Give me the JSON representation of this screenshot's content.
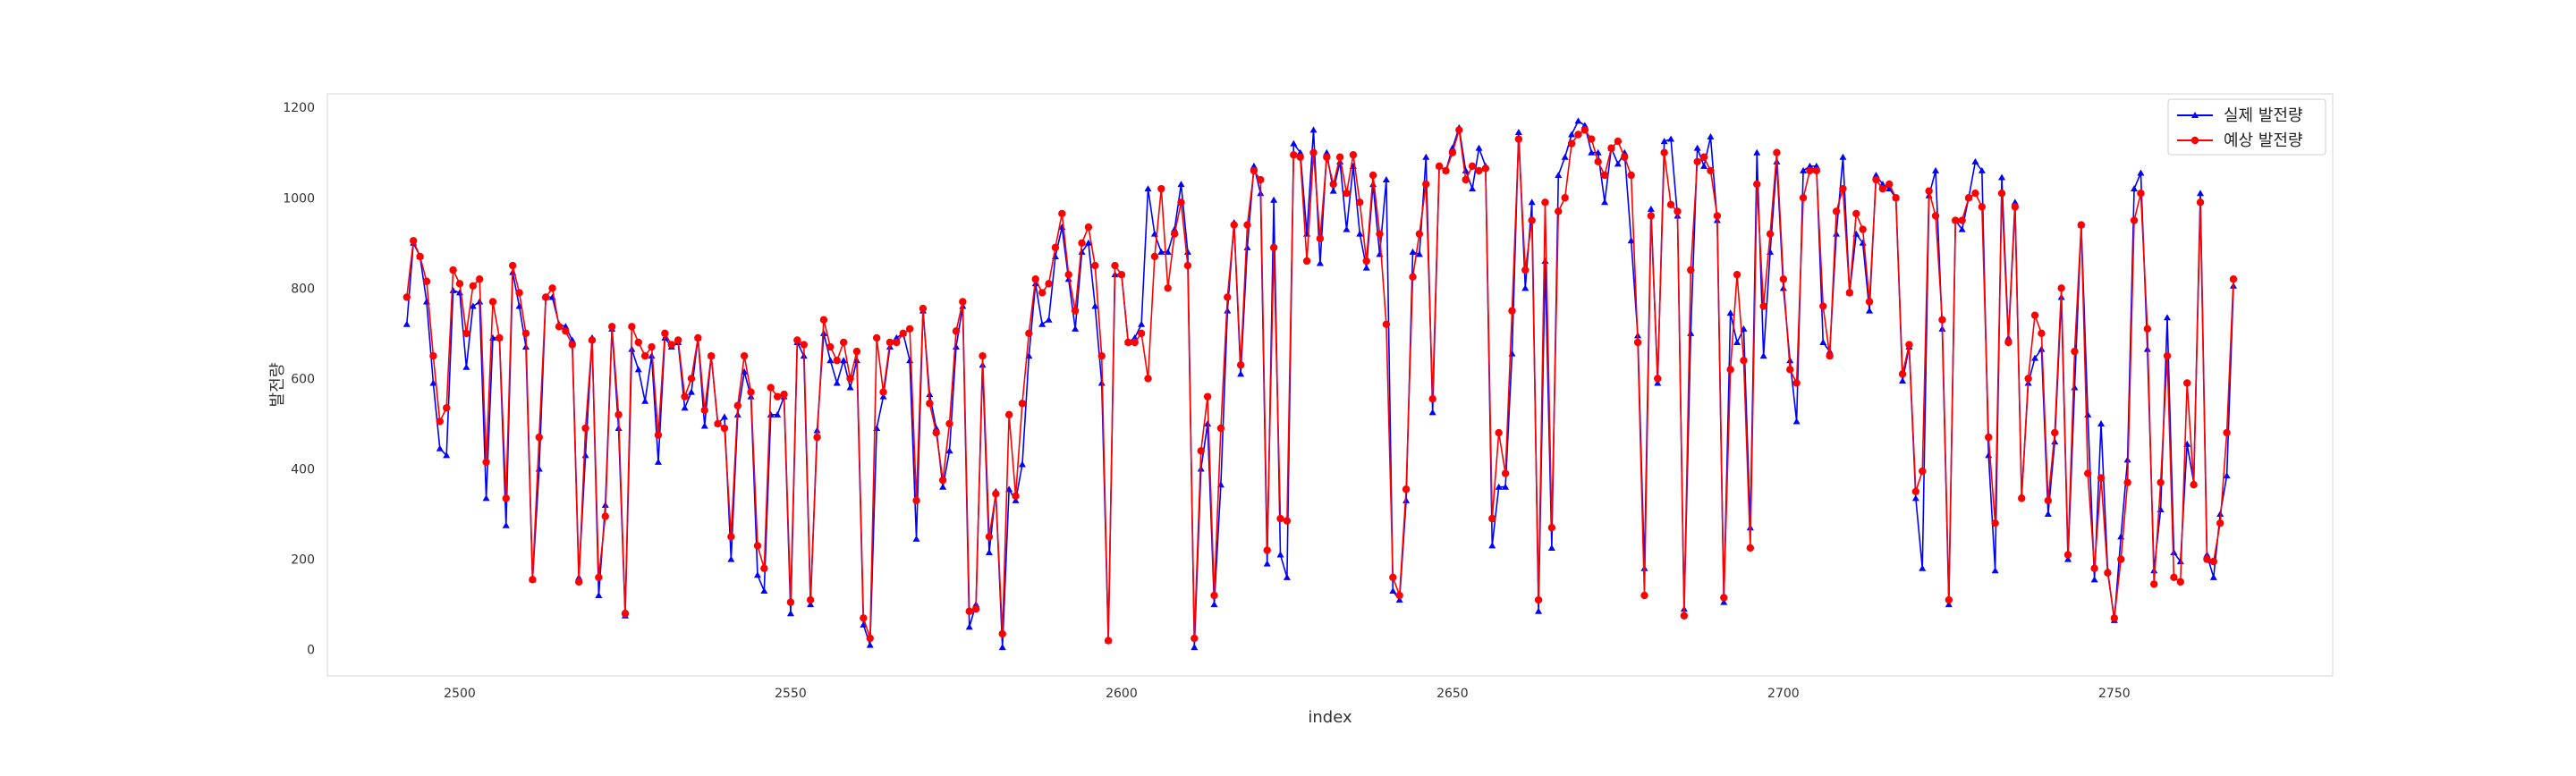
{
  "chart_data": {
    "type": "line",
    "title": "",
    "xlabel": "index",
    "ylabel": "발전량",
    "xlim": [
      2480,
      2783
    ],
    "ylim": [
      -58,
      1230
    ],
    "x_ticks": [
      2500,
      2550,
      2600,
      2650,
      2700,
      2750
    ],
    "y_ticks": [
      0,
      200,
      400,
      600,
      800,
      1000,
      1200
    ],
    "grid": false,
    "legend_position": "top-right",
    "x_start": 2492,
    "series": [
      {
        "name": "실제 발전량",
        "color": "#0000ff",
        "marker": "triangle",
        "values": [
          720,
          900,
          870,
          770,
          590,
          445,
          430,
          795,
          790,
          625,
          760,
          770,
          335,
          690,
          690,
          275,
          835,
          760,
          670,
          155,
          400,
          780,
          780,
          720,
          715,
          685,
          160,
          430,
          690,
          120,
          320,
          710,
          490,
          75,
          665,
          620,
          550,
          650,
          415,
          690,
          670,
          680,
          535,
          570,
          690,
          495,
          650,
          500,
          515,
          200,
          520,
          615,
          560,
          165,
          130,
          520,
          520,
          560,
          80,
          680,
          650,
          100,
          485,
          700,
          640,
          590,
          640,
          580,
          640,
          55,
          10,
          490,
          560,
          670,
          690,
          700,
          640,
          245,
          750,
          565,
          490,
          360,
          440,
          670,
          760,
          50,
          100,
          630,
          215,
          350,
          5,
          355,
          330,
          410,
          650,
          810,
          720,
          730,
          870,
          935,
          820,
          710,
          880,
          900,
          760,
          590,
          20,
          830,
          830,
          680,
          690,
          720,
          1020,
          920,
          880,
          880,
          930,
          1030,
          880,
          5,
          400,
          500,
          100,
          365,
          750,
          945,
          610,
          890,
          1070,
          1010,
          190,
          995,
          210,
          160,
          1120,
          1100,
          920,
          1150,
          855,
          1100,
          1015,
          1080,
          930,
          1070,
          920,
          845,
          1030,
          875,
          1040,
          130,
          110,
          330,
          880,
          875,
          1090,
          525,
          1070,
          1060,
          1110,
          1155,
          1060,
          1020,
          1110,
          1070,
          230,
          360,
          360,
          655,
          1145,
          800,
          990,
          85,
          860,
          225,
          1050,
          1090,
          1140,
          1170,
          1160,
          1100,
          1100,
          990,
          1110,
          1075,
          1100,
          905,
          695,
          180,
          975,
          590,
          1125,
          1130,
          960,
          90,
          700,
          1110,
          1070,
          1135,
          950,
          105,
          745,
          680,
          710,
          270,
          1100,
          650,
          880,
          1080,
          800,
          640,
          505,
          1060,
          1070,
          1070,
          680,
          660,
          920,
          1090,
          790,
          920,
          900,
          750,
          1050,
          1030,
          1020,
          1000,
          595,
          670,
          335,
          180,
          1005,
          1060,
          710,
          100,
          950,
          930,
          1000,
          1080,
          1060,
          430,
          175,
          1045,
          690,
          990,
          340,
          590,
          645,
          665,
          300,
          460,
          780,
          200,
          580,
          940,
          520,
          155,
          500,
          175,
          65,
          250,
          420,
          1020,
          1055,
          665,
          175,
          310,
          735,
          215,
          195,
          455,
          370,
          1010,
          210,
          160,
          300,
          385,
          805
        ]
      },
      {
        "name": "예상 발전량",
        "color": "#ff0000",
        "marker": "circle",
        "values": [
          780,
          905,
          870,
          815,
          650,
          505,
          535,
          840,
          810,
          700,
          805,
          820,
          415,
          770,
          690,
          335,
          850,
          790,
          700,
          155,
          470,
          780,
          800,
          715,
          705,
          675,
          150,
          490,
          685,
          160,
          295,
          715,
          520,
          80,
          715,
          680,
          650,
          670,
          475,
          700,
          675,
          685,
          560,
          600,
          690,
          530,
          650,
          500,
          490,
          250,
          540,
          650,
          570,
          230,
          180,
          580,
          560,
          565,
          105,
          685,
          675,
          110,
          470,
          730,
          670,
          640,
          680,
          600,
          660,
          70,
          25,
          690,
          570,
          680,
          680,
          700,
          710,
          330,
          755,
          545,
          480,
          375,
          500,
          705,
          770,
          85,
          90,
          650,
          250,
          345,
          35,
          520,
          340,
          545,
          700,
          820,
          790,
          810,
          890,
          965,
          830,
          750,
          900,
          935,
          850,
          650,
          20,
          850,
          830,
          680,
          680,
          700,
          600,
          870,
          1020,
          800,
          920,
          990,
          850,
          25,
          440,
          560,
          120,
          490,
          780,
          940,
          630,
          940,
          1060,
          1040,
          220,
          890,
          290,
          285,
          1095,
          1090,
          860,
          1100,
          910,
          1090,
          1030,
          1090,
          1010,
          1095,
          990,
          860,
          1050,
          920,
          720,
          160,
          120,
          355,
          825,
          920,
          1030,
          555,
          1070,
          1060,
          1100,
          1150,
          1040,
          1070,
          1060,
          1065,
          290,
          480,
          390,
          750,
          1130,
          840,
          950,
          110,
          990,
          270,
          970,
          1000,
          1120,
          1140,
          1150,
          1130,
          1080,
          1050,
          1110,
          1125,
          1090,
          1050,
          680,
          120,
          960,
          600,
          1100,
          985,
          970,
          75,
          840,
          1080,
          1090,
          1060,
          960,
          115,
          620,
          830,
          640,
          225,
          1030,
          760,
          920,
          1100,
          820,
          620,
          590,
          1000,
          1060,
          1060,
          760,
          650,
          970,
          1020,
          790,
          965,
          930,
          770,
          1040,
          1020,
          1030,
          1000,
          610,
          675,
          350,
          395,
          1015,
          960,
          730,
          110,
          950,
          950,
          1000,
          1010,
          980,
          470,
          280,
          1010,
          680,
          980,
          335,
          600,
          740,
          700,
          330,
          480,
          800,
          210,
          660,
          940,
          390,
          180,
          380,
          170,
          70,
          200,
          370,
          950,
          1010,
          710,
          145,
          370,
          650,
          160,
          150,
          590,
          365,
          990,
          200,
          195,
          280,
          480,
          820
        ]
      }
    ]
  }
}
